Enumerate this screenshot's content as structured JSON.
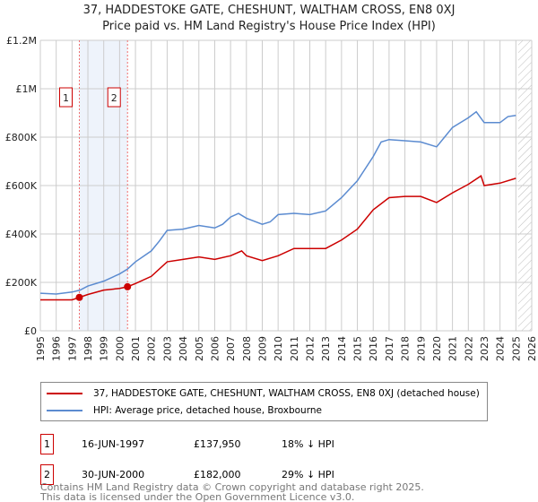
{
  "title": "37, HADDESTOKE GATE, CHESHUNT, WALTHAM CROSS, EN8 0XJ",
  "subtitle": "Price paid vs. HM Land Registry's House Price Index (HPI)",
  "colors": {
    "property": "#cc0000",
    "hpi": "#5b8bd0",
    "shade": "#eef3fb"
  },
  "chart_data": {
    "type": "line",
    "xlim": [
      1995,
      2026
    ],
    "ylim": [
      0,
      1200000
    ],
    "yticks": [
      {
        "v": 0,
        "label": "£0"
      },
      {
        "v": 200000,
        "label": "£200K"
      },
      {
        "v": 400000,
        "label": "£400K"
      },
      {
        "v": 600000,
        "label": "£600K"
      },
      {
        "v": 800000,
        "label": "£800K"
      },
      {
        "v": 1000000,
        "label": "£1M"
      },
      {
        "v": 1200000,
        "label": "£1.2M"
      }
    ],
    "xticks": [
      "1995",
      "1996",
      "1997",
      "1998",
      "1999",
      "2000",
      "2001",
      "2002",
      "2003",
      "2004",
      "2005",
      "2006",
      "2007",
      "2008",
      "2009",
      "2010",
      "2011",
      "2012",
      "2013",
      "2014",
      "2015",
      "2016",
      "2017",
      "2018",
      "2019",
      "2020",
      "2021",
      "2022",
      "2023",
      "2024",
      "2025",
      "2026"
    ],
    "shaded_range": [
      1997.46,
      2000.5
    ],
    "forecast_hatch_from": 2025.15,
    "series": [
      {
        "name": "37, HADDESTOKE GATE, CHESHUNT, WALTHAM CROSS, EN8 0XJ (detached house)",
        "color": "#cc0000",
        "x": [
          1995,
          1996,
          1997,
          1997.46,
          1998,
          1999,
          2000,
          2000.5,
          2001,
          2002,
          2003,
          2004,
          2005,
          2006,
          2007,
          2007.7,
          2008,
          2009,
          2010,
          2011,
          2012,
          2013,
          2014,
          2015,
          2016,
          2017,
          2018,
          2019,
          2020,
          2021,
          2022,
          2022.8,
          2023,
          2024,
          2025
        ],
        "y": [
          128000,
          128000,
          128000,
          137950,
          150000,
          168000,
          175000,
          182000,
          195000,
          225000,
          285000,
          295000,
          305000,
          295000,
          310000,
          330000,
          310000,
          290000,
          310000,
          340000,
          340000,
          340000,
          375000,
          420000,
          500000,
          550000,
          555000,
          555000,
          530000,
          570000,
          605000,
          640000,
          600000,
          610000,
          630000
        ]
      },
      {
        "name": "HPI: Average price, detached house, Broxbourne",
        "color": "#5b8bd0",
        "x": [
          1995,
          1996,
          1997,
          1997.5,
          1998,
          1999,
          2000,
          2000.5,
          2001,
          2002,
          2002.5,
          2003,
          2004,
          2005,
          2006,
          2006.5,
          2007,
          2007.5,
          2008,
          2009,
          2009.5,
          2010,
          2011,
          2012,
          2013,
          2014,
          2015,
          2016,
          2016.5,
          2017,
          2018,
          2019,
          2020,
          2020.5,
          2021,
          2022,
          2022.5,
          2023,
          2024,
          2024.5,
          2025
        ],
        "y": [
          155000,
          152000,
          160000,
          168000,
          185000,
          205000,
          235000,
          255000,
          285000,
          330000,
          370000,
          415000,
          420000,
          435000,
          425000,
          440000,
          470000,
          485000,
          465000,
          440000,
          450000,
          480000,
          485000,
          480000,
          495000,
          550000,
          620000,
          720000,
          780000,
          790000,
          785000,
          780000,
          760000,
          800000,
          840000,
          880000,
          905000,
          860000,
          860000,
          885000,
          890000
        ]
      }
    ],
    "markers": [
      {
        "label": "1",
        "x": 1997.46,
        "y": 137950
      },
      {
        "label": "2",
        "x": 2000.5,
        "y": 182000
      }
    ]
  },
  "legend": [
    "37, HADDESTOKE GATE, CHESHUNT, WALTHAM CROSS, EN8 0XJ (detached house)",
    "HPI: Average price, detached house, Broxbourne"
  ],
  "sales": [
    {
      "num": "1",
      "date": "16-JUN-1997",
      "price": "£137,950",
      "hpi": "18% ↓ HPI"
    },
    {
      "num": "2",
      "date": "30-JUN-2000",
      "price": "£182,000",
      "hpi": "29% ↓ HPI"
    }
  ],
  "footer": [
    "Contains HM Land Registry data © Crown copyright and database right 2025.",
    "This data is licensed under the Open Government Licence v3.0."
  ]
}
